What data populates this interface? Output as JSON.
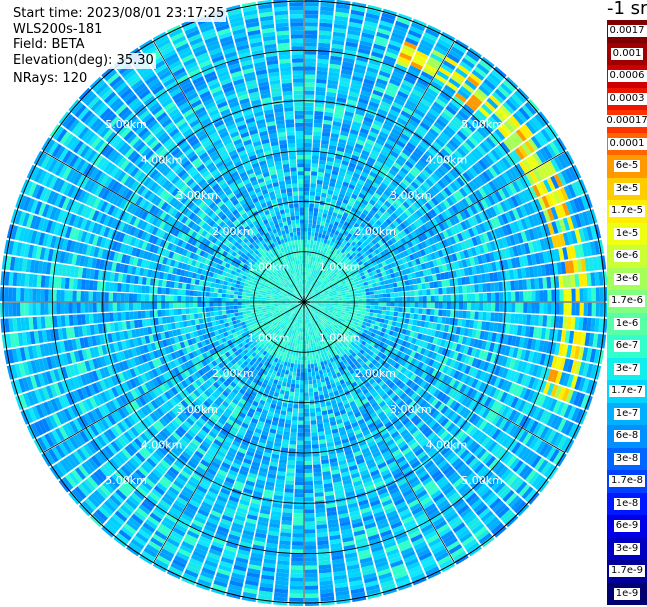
{
  "info": {
    "start_time": "Start time: 2023/08/01 23:17:25",
    "instrument": "WLS200s-181",
    "field": "Field: BETA",
    "elevation": "Elevation(deg): 35.30",
    "nrays": "NRays: 120"
  },
  "colorbar": {
    "units": "-1 sr",
    "labels": [
      "0.0017",
      "0.001",
      "0.0006",
      "0.0003",
      "0.00017",
      "0.0001",
      "6e-5",
      "3e-5",
      "1.7e-5",
      "1e-5",
      "6e-6",
      "3e-6",
      "1.7e-6",
      "1e-6",
      "6e-7",
      "3e-7",
      "1.7e-7",
      "1e-7",
      "6e-8",
      "3e-8",
      "1.7e-8",
      "1e-8",
      "6e-9",
      "3e-9",
      "1.7e-9",
      "1e-9"
    ],
    "colors": [
      "#7f0000",
      "#a00000",
      "#cc0000",
      "#ee1500",
      "#ff3300",
      "#ff6600",
      "#ff9900",
      "#ffcc00",
      "#ffee00",
      "#eeff11",
      "#ccff33",
      "#a6ff59",
      "#80ff80",
      "#59ffa6",
      "#33ffcc",
      "#11eeee",
      "#00d4ff",
      "#00b0ff",
      "#0090ff",
      "#0066ff",
      "#0040ff",
      "#0018ff",
      "#0000e8",
      "#0000c0",
      "#000098",
      "#000070"
    ]
  },
  "chart_data": {
    "type": "polar",
    "title": "",
    "field": "BETA",
    "elevation_deg": 35.3,
    "n_rays": 120,
    "range_rings_km": [
      1,
      2,
      3,
      4,
      5
    ],
    "range_labels": [
      "1.00km",
      "2.00km",
      "3.00km",
      "4.00km",
      "5.00km"
    ],
    "max_range_km": 6.0,
    "spoke_step_deg": 30,
    "background_beta": "3e-7 to 1.7e-8 (cyan/blue)",
    "features": [
      {
        "name": "elevated layer",
        "beta": "1e-4 to 1.7e-6",
        "azimuth_deg": [
          20,
          110
        ],
        "range_km": [
          5.1,
          5.6
        ]
      }
    ]
  }
}
